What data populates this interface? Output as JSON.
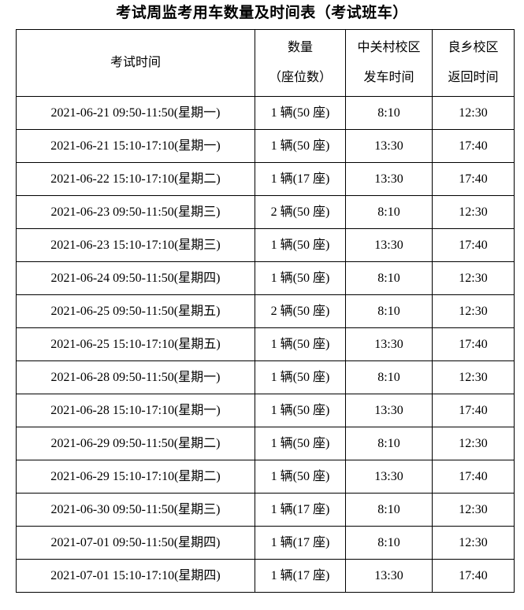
{
  "title": "考试周监考用车数量及时间表（考试班车）",
  "table": {
    "headers": {
      "exam_time": [
        "考试时间"
      ],
      "quantity": [
        "数量",
        "（座位数）"
      ],
      "departure": [
        "中关村校区",
        "发车时间"
      ],
      "return": [
        "良乡校区",
        "返回时间"
      ]
    },
    "rows": [
      {
        "exam_time": "2021-06-21 09:50-11:50(星期一)",
        "quantity": "1 辆(50 座)",
        "departure_time": "8:10",
        "return_time": "12:30"
      },
      {
        "exam_time": "2021-06-21 15:10-17:10(星期一)",
        "quantity": "1 辆(50 座)",
        "departure_time": "13:30",
        "return_time": "17:40"
      },
      {
        "exam_time": "2021-06-22 15:10-17:10(星期二)",
        "quantity": "1 辆(17 座)",
        "departure_time": "13:30",
        "return_time": "17:40"
      },
      {
        "exam_time": "2021-06-23 09:50-11:50(星期三)",
        "quantity": "2 辆(50 座)",
        "departure_time": "8:10",
        "return_time": "12:30"
      },
      {
        "exam_time": "2021-06-23 15:10-17:10(星期三)",
        "quantity": "1 辆(50 座)",
        "departure_time": "13:30",
        "return_time": "17:40"
      },
      {
        "exam_time": "2021-06-24 09:50-11:50(星期四)",
        "quantity": "1 辆(50 座)",
        "departure_time": "8:10",
        "return_time": "12:30"
      },
      {
        "exam_time": "2021-06-25 09:50-11:50(星期五)",
        "quantity": "2 辆(50 座)",
        "departure_time": "8:10",
        "return_time": "12:30"
      },
      {
        "exam_time": "2021-06-25 15:10-17:10(星期五)",
        "quantity": "1 辆(50 座)",
        "departure_time": "13:30",
        "return_time": "17:40"
      },
      {
        "exam_time": "2021-06-28 09:50-11:50(星期一)",
        "quantity": "1 辆(50 座)",
        "departure_time": "8:10",
        "return_time": "12:30"
      },
      {
        "exam_time": "2021-06-28 15:10-17:10(星期一)",
        "quantity": "1 辆(50 座)",
        "departure_time": "13:30",
        "return_time": "17:40"
      },
      {
        "exam_time": "2021-06-29 09:50-11:50(星期二)",
        "quantity": "1 辆(50 座)",
        "departure_time": "8:10",
        "return_time": "12:30"
      },
      {
        "exam_time": "2021-06-29 15:10-17:10(星期二)",
        "quantity": "1 辆(50 座)",
        "departure_time": "13:30",
        "return_time": "17:40"
      },
      {
        "exam_time": "2021-06-30 09:50-11:50(星期三)",
        "quantity": "1 辆(17 座)",
        "departure_time": "8:10",
        "return_time": "12:30"
      },
      {
        "exam_time": "2021-07-01 09:50-11:50(星期四)",
        "quantity": "1 辆(17 座)",
        "departure_time": "8:10",
        "return_time": "12:30"
      },
      {
        "exam_time": "2021-07-01 15:10-17:10(星期四)",
        "quantity": "1 辆(17 座)",
        "departure_time": "13:30",
        "return_time": "17:40"
      }
    ]
  },
  "colors": {
    "text": "#000000",
    "border": "#000000",
    "background": "#ffffff"
  }
}
